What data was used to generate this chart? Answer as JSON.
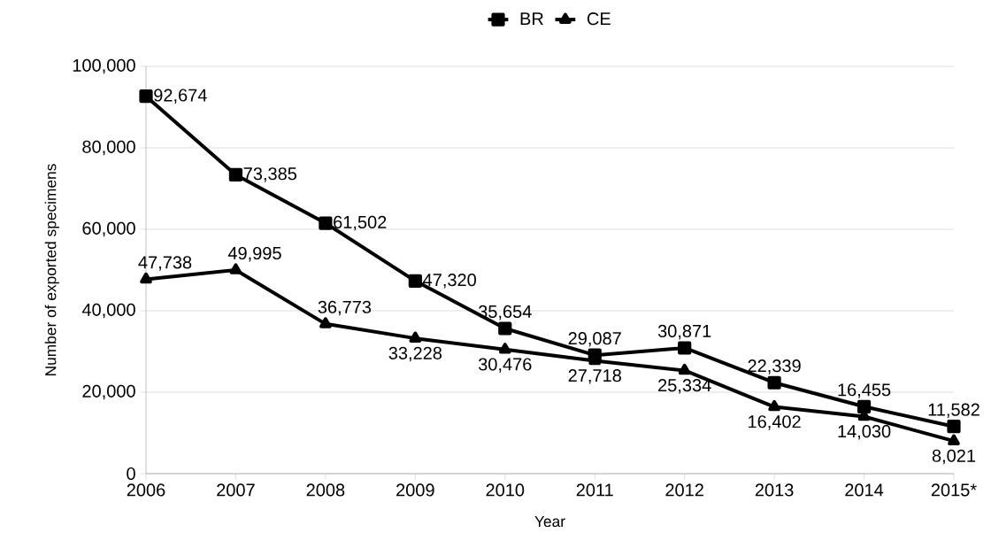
{
  "chart_data": {
    "type": "line",
    "xlabel": "Year",
    "ylabel": "Number of exported specimens",
    "categories": [
      "2006",
      "2007",
      "2008",
      "2009",
      "2010",
      "2011",
      "2012",
      "2013",
      "2014",
      "2015*"
    ],
    "series": [
      {
        "name": "BR",
        "color": "#000000",
        "marker": "square",
        "values": [
          92674,
          73385,
          61502,
          47320,
          35654,
          29087,
          30871,
          22339,
          16455,
          11582
        ],
        "value_labels": [
          "92,674",
          "73,385",
          "61,502",
          "47,320",
          "35,654",
          "29,087",
          "30,871",
          "22,339",
          "16,455",
          "11,582"
        ]
      },
      {
        "name": "CE",
        "color": "#000000",
        "marker": "triangle",
        "values": [
          47738,
          49995,
          36773,
          33228,
          30476,
          27718,
          25334,
          16402,
          14030,
          8021
        ],
        "value_labels": [
          "47,738",
          "49,995",
          "36,773",
          "33,228",
          "30,476",
          "27,718",
          "25,334",
          "16,402",
          "14,030",
          "8,021"
        ]
      }
    ],
    "ylim": [
      0,
      100000
    ],
    "yticks": [
      0,
      {
        "value": 20000,
        "label": "20,000"
      },
      {
        "value": 40000,
        "label": "40,000"
      },
      {
        "value": 60000,
        "label": "60,000"
      },
      {
        "value": 80000,
        "label": "80,000"
      },
      {
        "value": 100000,
        "label": "100,000"
      }
    ],
    "grid": "y",
    "legend": "top",
    "line_style": "solid"
  }
}
